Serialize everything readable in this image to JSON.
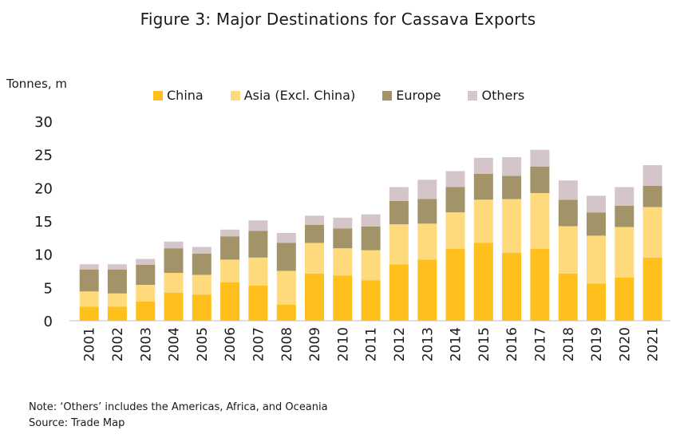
{
  "chart_data": {
    "type": "bar",
    "stacked": true,
    "title": "Figure 3: Major Destinations for Cassava Exports",
    "ylabel": "Tonnes, m",
    "xlabel": "",
    "ylim": [
      0,
      30
    ],
    "yticks": [
      "0",
      "5",
      "10",
      "15",
      "20",
      "25",
      "30"
    ],
    "grid": false,
    "legend_position": "top",
    "categories": [
      "2001",
      "2002",
      "2003",
      "2004",
      "2005",
      "2006",
      "2007",
      "2008",
      "2009",
      "2010",
      "2011",
      "2012",
      "2013",
      "2014",
      "2015",
      "2016",
      "2017",
      "2018",
      "2019",
      "2020",
      "2021"
    ],
    "series": [
      {
        "name": "China",
        "color": "#FFC01E",
        "values": [
          2.1,
          2.1,
          2.9,
          4.2,
          3.9,
          5.8,
          5.3,
          2.4,
          7.1,
          6.8,
          6.1,
          8.5,
          9.2,
          10.8,
          11.7,
          10.2,
          10.8,
          7.1,
          5.6,
          6.5,
          9.5
        ]
      },
      {
        "name": "Asia (Excl. China)",
        "color": "#FFDA7D",
        "values": [
          2.3,
          2.0,
          2.5,
          3.0,
          3.0,
          3.4,
          4.2,
          5.1,
          4.6,
          4.1,
          4.5,
          6.0,
          5.4,
          5.5,
          6.5,
          8.1,
          8.4,
          7.1,
          7.2,
          7.6,
          7.6
        ]
      },
      {
        "name": "Europe",
        "color": "#A29468",
        "values": [
          3.3,
          3.6,
          3.0,
          3.7,
          3.2,
          3.5,
          4.0,
          4.2,
          2.7,
          3.0,
          3.6,
          3.5,
          3.7,
          3.8,
          3.9,
          3.5,
          4.0,
          4.0,
          3.5,
          3.2,
          3.2
        ]
      },
      {
        "name": "Others",
        "color": "#D4C5C8",
        "values": [
          0.8,
          0.8,
          0.9,
          1.0,
          1.0,
          1.0,
          1.6,
          1.5,
          1.4,
          1.6,
          1.8,
          2.1,
          2.9,
          2.4,
          2.4,
          2.8,
          2.5,
          2.9,
          2.5,
          2.8,
          3.1
        ]
      }
    ]
  },
  "notes": {
    "note": "Note: ‘Others’ includes the Americas, Africa, and Oceania",
    "source": "Source: Trade Map"
  }
}
